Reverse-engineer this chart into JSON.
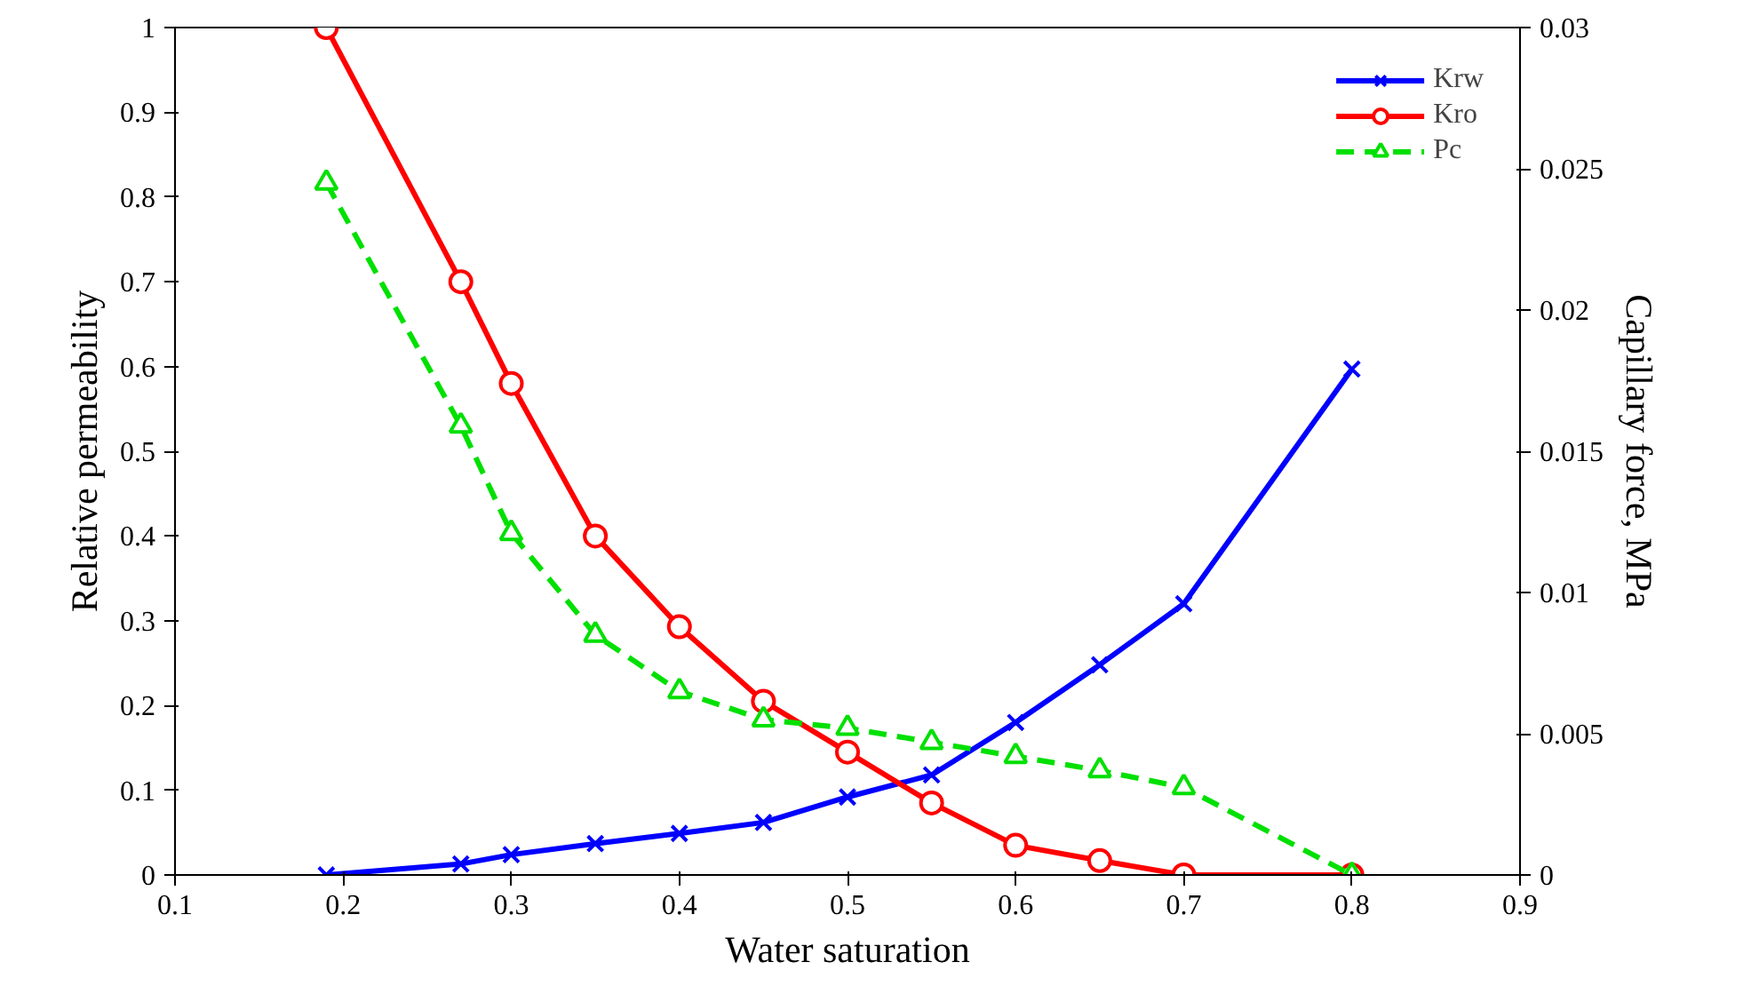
{
  "chart_data": {
    "type": "line",
    "xlabel": "Water saturation",
    "ylabel": "Relative permeability",
    "y2label": "Capillary force, MPa",
    "xlim": [
      0.1,
      0.9
    ],
    "xticks": [
      0.1,
      0.2,
      0.3,
      0.4,
      0.5,
      0.6,
      0.7,
      0.8,
      0.9
    ],
    "ylim": [
      0,
      1
    ],
    "yticks": [
      0,
      0.1,
      0.2,
      0.3,
      0.4,
      0.5,
      0.6,
      0.7,
      0.8,
      0.9,
      1
    ],
    "y2lim": [
      0,
      0.03
    ],
    "y2ticks": [
      0,
      0.005,
      0.01,
      0.015,
      0.02,
      0.025,
      0.03
    ],
    "grid": false,
    "legend": "top right",
    "series": [
      {
        "name": "Krw",
        "color": "#0000ff",
        "marker": "cross",
        "line_style": "solid",
        "x": [
          0.19,
          0.27,
          0.3,
          0.35,
          0.4,
          0.45,
          0.5,
          0.55,
          0.6,
          0.65,
          0.7,
          0.8
        ],
        "values": [
          0,
          0.013,
          0.024,
          0.037,
          0.049,
          0.062,
          0.092,
          0.118,
          0.18,
          0.248,
          0.32,
          0.597
        ]
      },
      {
        "name": "Kro",
        "color": "#ff0000",
        "marker": "circle",
        "line_style": "solid",
        "x": [
          0.19,
          0.27,
          0.3,
          0.35,
          0.4,
          0.45,
          0.5,
          0.55,
          0.6,
          0.65,
          0.7,
          0.8
        ],
        "values": [
          1,
          0.7,
          0.58,
          0.4,
          0.293,
          0.205,
          0.145,
          0.085,
          0.035,
          0.017,
          0,
          0
        ]
      },
      {
        "name": "Pc",
        "color": "#00e000",
        "marker": "triangle",
        "line_style": "dashed",
        "axis": "y2",
        "x": [
          0.19,
          0.27,
          0.3,
          0.35,
          0.4,
          0.45,
          0.5,
          0.55,
          0.6,
          0.65,
          0.7,
          0.8
        ],
        "values": [
          0.0245,
          0.0159,
          0.0121,
          0.0085,
          0.0065,
          0.0055,
          0.0052,
          0.0047,
          0.0042,
          0.0037,
          0.0031,
          0
        ]
      }
    ]
  }
}
